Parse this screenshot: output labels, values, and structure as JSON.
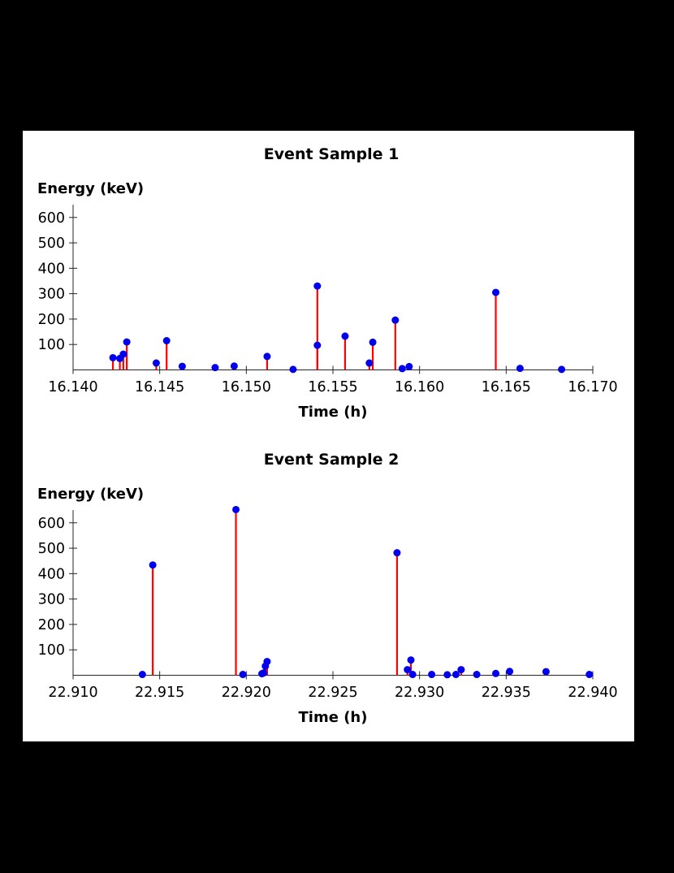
{
  "page": {
    "background": "#000000",
    "panel_background": "#ffffff"
  },
  "colors": {
    "stem": "#ff0000",
    "marker": "#0000ee",
    "axis": "#262626",
    "text": "#000000"
  },
  "chart_data": [
    {
      "type": "scatter",
      "style": "stem",
      "title": "Event Sample 1",
      "ylabel": "Energy (keV)",
      "xlabel": "Time (h)",
      "xlim": [
        16.14,
        16.17
      ],
      "ylim": [
        0,
        650
      ],
      "grid": false,
      "legend": "none",
      "xticks": [
        "16.140",
        "16.145",
        "16.150",
        "16.155",
        "16.160",
        "16.165",
        "16.170"
      ],
      "yticks": [
        100,
        200,
        300,
        400,
        500,
        600
      ],
      "events": [
        [
          16.1423,
          48
        ],
        [
          16.1427,
          45
        ],
        [
          16.1429,
          62
        ],
        [
          16.1431,
          110
        ],
        [
          16.1448,
          27
        ],
        [
          16.1454,
          115
        ],
        [
          16.1463,
          14
        ],
        [
          16.1482,
          9
        ],
        [
          16.1493,
          15
        ],
        [
          16.1512,
          53
        ],
        [
          16.1527,
          2
        ],
        [
          16.1541,
          97
        ],
        [
          16.1541,
          330
        ],
        [
          16.1557,
          133
        ],
        [
          16.1571,
          27
        ],
        [
          16.1573,
          109
        ],
        [
          16.1586,
          196
        ],
        [
          16.159,
          5
        ],
        [
          16.1594,
          13
        ],
        [
          16.1644,
          305
        ],
        [
          16.1658,
          6
        ],
        [
          16.1682,
          2
        ]
      ]
    },
    {
      "type": "scatter",
      "style": "stem",
      "title": "Event Sample 2",
      "ylabel": "Energy (keV)",
      "xlabel": "Time (h)",
      "xlim": [
        22.91,
        22.94
      ],
      "ylim": [
        0,
        650
      ],
      "grid": false,
      "legend": "none",
      "xticks": [
        "22.910",
        "22.915",
        "22.920",
        "22.925",
        "22.930",
        "22.935",
        "22.940"
      ],
      "yticks": [
        100,
        200,
        300,
        400,
        500,
        600
      ],
      "events": [
        [
          22.914,
          3
        ],
        [
          22.9146,
          434
        ],
        [
          22.9194,
          652
        ],
        [
          22.9198,
          3
        ],
        [
          22.9209,
          6
        ],
        [
          22.921,
          9
        ],
        [
          22.9211,
          36
        ],
        [
          22.9212,
          54
        ],
        [
          22.9287,
          482
        ],
        [
          22.9293,
          22
        ],
        [
          22.9295,
          60
        ],
        [
          22.9296,
          3
        ],
        [
          22.9307,
          3
        ],
        [
          22.9316,
          2
        ],
        [
          22.9321,
          3
        ],
        [
          22.9324,
          22
        ],
        [
          22.9333,
          3
        ],
        [
          22.9344,
          7
        ],
        [
          22.9352,
          15
        ],
        [
          22.9373,
          14
        ],
        [
          22.9398,
          3
        ]
      ]
    }
  ]
}
